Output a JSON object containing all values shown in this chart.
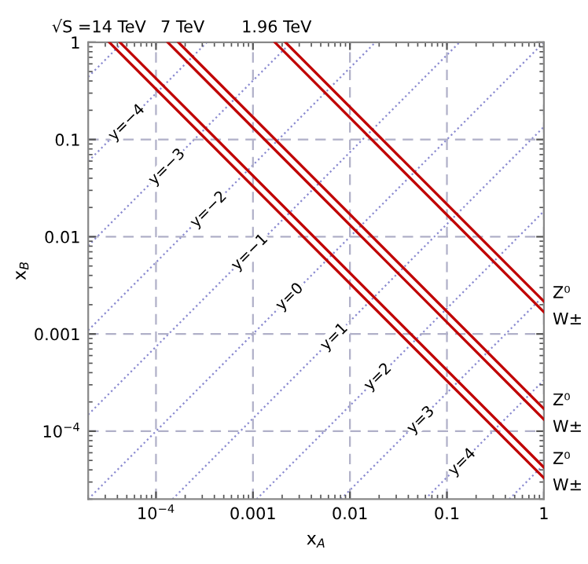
{
  "chart_data": {
    "type": "line",
    "log": "xy",
    "grid": true,
    "xlabel": "x$_{A}$",
    "ylabel": "x$_{B}$",
    "xlim": [
      2e-05,
      1
    ],
    "ylim": [
      2e-05,
      1
    ],
    "xticks": [
      {
        "value": 0.0001,
        "label": "10$^{−4}$"
      },
      0.001,
      0.01,
      0.1,
      1
    ],
    "yticks": [
      {
        "value": 0.0001,
        "label": "10$^{−4}$"
      },
      0.001,
      0.01,
      0.1,
      1
    ],
    "series": [
      {
        "x": [
          4.24e-05,
          1
        ],
        "values": [
          1,
          4.24e-05
        ],
        "name": "Z⁰",
        "color": "#c00000",
        "line_style": "solid"
      },
      {
        "x": [
          3.3e-05,
          1
        ],
        "values": [
          1,
          3.3e-05
        ],
        "name": "W±",
        "color": "#c00000",
        "line_style": "solid"
      },
      {
        "x": [
          0.00017,
          1
        ],
        "values": [
          1,
          0.00017
        ],
        "name": "Z⁰",
        "color": "#c00000",
        "line_style": "solid"
      },
      {
        "x": [
          0.000132,
          1
        ],
        "values": [
          1,
          0.000132
        ],
        "name": "W±",
        "color": "#c00000",
        "line_style": "solid"
      },
      {
        "x": [
          0.00216,
          1
        ],
        "values": [
          1,
          0.00216
        ],
        "name": "Z⁰",
        "color": "#c00000",
        "line_style": "solid"
      },
      {
        "x": [
          0.00168,
          1
        ],
        "values": [
          1,
          0.00168
        ],
        "name": "W±",
        "color": "#c00000",
        "line_style": "solid"
      },
      {
        "x": [
          2e-05,
          4.54e-05
        ],
        "values": [
          0.44,
          1
        ],
        "color": "#8a8ad0",
        "line_style": "dotted"
      },
      {
        "x": [
          2e-05,
          0.000335
        ],
        "values": [
          0.0596,
          1
        ],
        "color": "#8a8ad0",
        "line_style": "dotted"
      },
      {
        "x": [
          2e-05,
          0.00248
        ],
        "values": [
          0.00807,
          1
        ],
        "color": "#8a8ad0",
        "line_style": "dotted"
      },
      {
        "x": [
          2e-05,
          0.0183
        ],
        "values": [
          0.00109,
          1
        ],
        "color": "#8a8ad0",
        "line_style": "dotted"
      },
      {
        "x": [
          2e-05,
          0.135
        ],
        "values": [
          0.000148,
          1
        ],
        "color": "#8a8ad0",
        "line_style": "dotted"
      },
      {
        "x": [
          2e-05,
          1
        ],
        "values": [
          2e-05,
          1
        ],
        "color": "#8a8ad0",
        "line_style": "dotted"
      },
      {
        "x": [
          0.000148,
          1
        ],
        "values": [
          2e-05,
          0.135
        ],
        "color": "#8a8ad0",
        "line_style": "dotted"
      },
      {
        "x": [
          0.00109,
          1
        ],
        "values": [
          2e-05,
          0.0183
        ],
        "color": "#8a8ad0",
        "line_style": "dotted"
      },
      {
        "x": [
          0.00807,
          1
        ],
        "values": [
          2e-05,
          0.00248
        ],
        "color": "#8a8ad0",
        "line_style": "dotted"
      },
      {
        "x": [
          0.0596,
          1
        ],
        "values": [
          2e-05,
          0.000335
        ],
        "color": "#8a8ad0",
        "line_style": "dotted"
      },
      {
        "x": [
          0.44,
          1
        ],
        "values": [
          2e-05,
          4.54e-05
        ],
        "color": "#8a8ad0",
        "line_style": "dotted"
      }
    ],
    "annotations": [
      "√S =14 TeV",
      "7 TeV",
      "1.96 TeV",
      {
        "text": "y=−4",
        "x": 5e-05,
        "y": 0.149
      },
      {
        "text": "y=−3",
        "x": 0.00013,
        "y": 0.052
      },
      {
        "text": "y=−2",
        "x": 0.00035,
        "y": 0.019
      },
      {
        "text": "y=−1",
        "x": 0.00093,
        "y": 0.0069
      },
      {
        "text": "y=0",
        "x": 0.0024,
        "y": 0.0024
      },
      {
        "text": "y=1",
        "x": 0.0069,
        "y": 0.00093
      },
      {
        "text": "y=2",
        "x": 0.0195,
        "y": 0.00036
      },
      {
        "text": "y=3",
        "x": 0.054,
        "y": 0.00013
      },
      {
        "text": "y=4",
        "x": 0.144,
        "y": 4.8e-05
      }
    ]
  }
}
